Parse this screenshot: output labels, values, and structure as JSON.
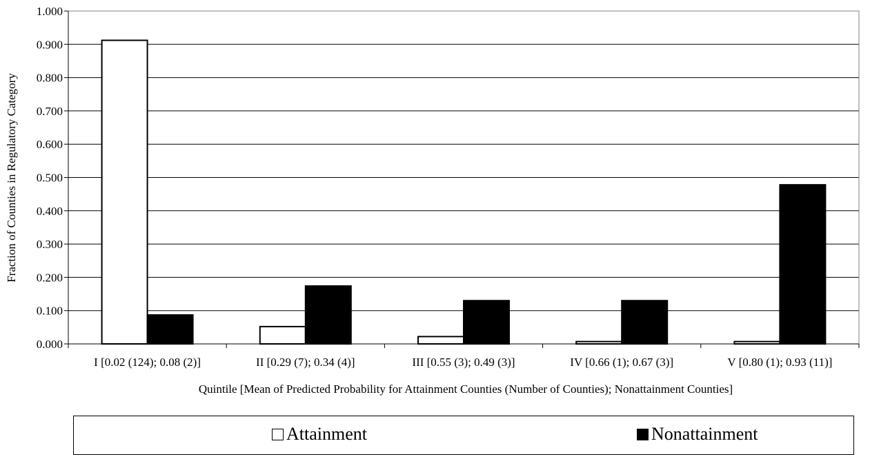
{
  "chart_data": {
    "type": "bar",
    "title": "",
    "xlabel": "Quintile [Mean of Predicted Probability for Attainment Counties (Number of Counties); Nonattainment Counties]",
    "ylabel": "Fraction of Counties in Regulatory Category",
    "ylim": [
      0,
      1
    ],
    "yticks": [
      "0.000",
      "0.100",
      "0.200",
      "0.300",
      "0.400",
      "0.500",
      "0.600",
      "0.700",
      "0.800",
      "0.900",
      "1.000"
    ],
    "grid": true,
    "legend_position": "bottom",
    "categories": [
      "I [0.02 (124); 0.08 (2)]",
      "II [0.29 (7); 0.34 (4)]",
      "III [0.55 (3); 0.49 (3)]",
      "IV [0.66 (1); 0.67 (3)]",
      "V [0.80 (1); 0.93 (11)]"
    ],
    "series": [
      {
        "name": "Attainment",
        "values": [
          0.912,
          0.052,
          0.022,
          0.007,
          0.007
        ],
        "color": "#ffffff"
      },
      {
        "name": "Nonattainment",
        "values": [
          0.087,
          0.174,
          0.13,
          0.13,
          0.478
        ],
        "color": "#000000"
      }
    ]
  }
}
